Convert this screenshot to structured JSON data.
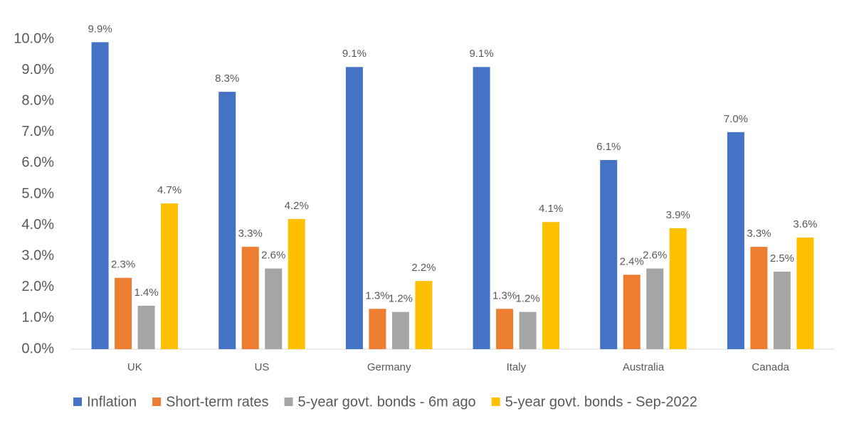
{
  "chart_data": {
    "type": "bar",
    "categories": [
      "UK",
      "US",
      "Germany",
      "Italy",
      "Australia",
      "Canada"
    ],
    "series": [
      {
        "name": "Inflation",
        "color": "#4472c4",
        "values": [
          9.9,
          8.3,
          9.1,
          9.1,
          6.1,
          7.0
        ],
        "value_labels": [
          "9.9%",
          "8.3%",
          "9.1%",
          "9.1%",
          "6.1%",
          "7.0%"
        ]
      },
      {
        "name": "Short-term rates",
        "color": "#ed7d31",
        "values": [
          2.3,
          3.3,
          1.3,
          1.3,
          2.4,
          3.3
        ],
        "value_labels": [
          "2.3%",
          "3.3%",
          "1.3%",
          "1.3%",
          "2.4%",
          "3.3%"
        ]
      },
      {
        "name": "5-year govt. bonds - 6m ago",
        "color": "#a5a5a5",
        "values": [
          1.4,
          2.6,
          1.2,
          1.2,
          2.6,
          2.5
        ],
        "value_labels": [
          "1.4%",
          "2.6%",
          "1.2%",
          "1.2%",
          "2.6%",
          "2.5%"
        ]
      },
      {
        "name": "5-year govt. bonds - Sep-2022",
        "color": "#ffc000",
        "values": [
          4.7,
          4.2,
          2.2,
          4.1,
          3.9,
          3.6
        ],
        "value_labels": [
          "4.7%",
          "4.2%",
          "2.2%",
          "4.1%",
          "3.9%",
          "3.6%"
        ]
      }
    ],
    "ylim": [
      0,
      10
    ],
    "yticks": [
      {
        "value": 0,
        "label": "0.0%"
      },
      {
        "value": 1,
        "label": "1.0%"
      },
      {
        "value": 2,
        "label": "2.0%"
      },
      {
        "value": 3,
        "label": "3.0%"
      },
      {
        "value": 4,
        "label": "4.0%"
      },
      {
        "value": 5,
        "label": "5.0%"
      },
      {
        "value": 6,
        "label": "6.0%"
      },
      {
        "value": 7,
        "label": "7.0%"
      },
      {
        "value": 8,
        "label": "8.0%"
      },
      {
        "value": 9,
        "label": "9.0%"
      },
      {
        "value": 10,
        "label": "10.0%"
      }
    ],
    "grid": false,
    "legend": "bottom"
  }
}
